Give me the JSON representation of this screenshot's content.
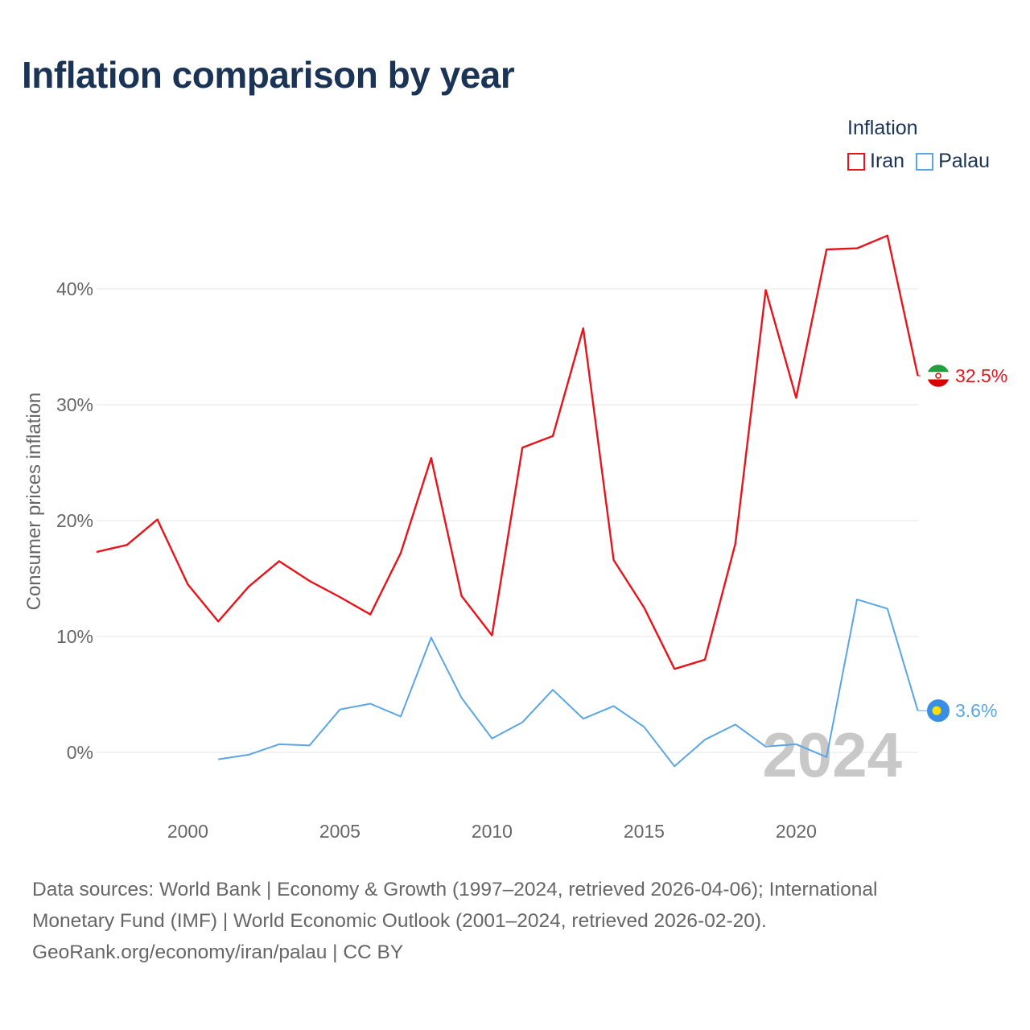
{
  "title": "Inflation comparison by year",
  "legend": {
    "title": "Inflation",
    "items": [
      {
        "label": "Iran",
        "color": "#e8141c"
      },
      {
        "label": "Palau",
        "color": "#5aa5e6"
      }
    ]
  },
  "footer": {
    "line1": "Data sources: World Bank | Economy & Growth (1997–2024, retrieved 2026-04-06); International",
    "line2": "Monetary Fund (IMF) | World Economic Outlook (2001–2024, retrieved 2026-02-20).",
    "line3": "GeoRank.org/economy/iran/palau | CC BY"
  },
  "chart_data": {
    "type": "line",
    "title": "Inflation comparison by year",
    "xlabel": "",
    "ylabel": "Consumer prices inflation",
    "xlim": [
      1997,
      2024
    ],
    "ylim": [
      -5,
      48
    ],
    "xticks": [
      2000,
      2005,
      2010,
      2015,
      2020
    ],
    "yticks": [
      0,
      10,
      20,
      30,
      40
    ],
    "ytick_labels": [
      "0%",
      "10%",
      "20%",
      "30%",
      "40%"
    ],
    "grid": true,
    "watermark_year": "2024",
    "series": [
      {
        "name": "Iran",
        "color": "#e8141c",
        "end_label": "32.5%",
        "flag_icon": "iran-flag-icon",
        "x": [
          1997,
          1998,
          1999,
          2000,
          2001,
          2002,
          2003,
          2004,
          2005,
          2006,
          2007,
          2008,
          2009,
          2010,
          2011,
          2012,
          2013,
          2014,
          2015,
          2016,
          2017,
          2018,
          2019,
          2020,
          2021,
          2022,
          2023,
          2024
        ],
        "values": [
          17.3,
          17.9,
          20.1,
          14.5,
          11.3,
          14.3,
          16.5,
          14.8,
          13.4,
          11.9,
          17.2,
          25.4,
          13.5,
          10.1,
          26.3,
          27.3,
          36.6,
          16.6,
          12.5,
          7.2,
          8.0,
          18.0,
          39.9,
          30.6,
          43.4,
          43.5,
          44.6,
          32.5
        ]
      },
      {
        "name": "Palau",
        "color": "#5aa5e6",
        "end_label": "3.6%",
        "flag_icon": "palau-flag-icon",
        "x": [
          2001,
          2002,
          2003,
          2004,
          2005,
          2006,
          2007,
          2008,
          2009,
          2010,
          2011,
          2012,
          2013,
          2014,
          2015,
          2016,
          2017,
          2018,
          2019,
          2020,
          2021,
          2022,
          2023,
          2024
        ],
        "values": [
          -0.6,
          -0.2,
          0.7,
          0.6,
          3.7,
          4.2,
          3.1,
          9.9,
          4.7,
          1.2,
          2.6,
          5.4,
          2.9,
          4.0,
          2.2,
          -1.2,
          1.1,
          2.4,
          0.5,
          0.7,
          -0.4,
          13.2,
          12.4,
          3.6
        ]
      }
    ]
  }
}
